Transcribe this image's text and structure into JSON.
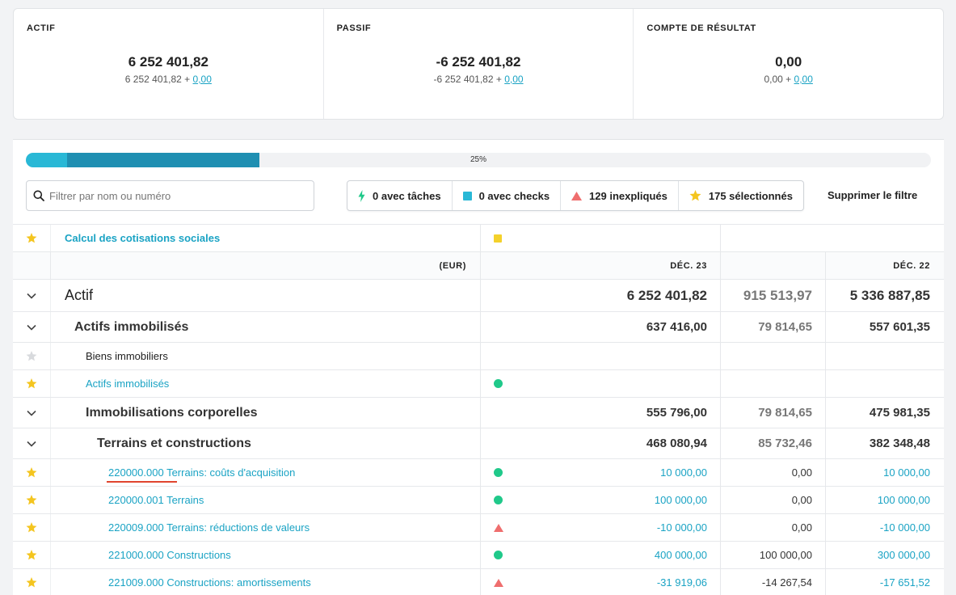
{
  "summary": {
    "actif": {
      "title": "ACTIF",
      "value": "6 252 401,82",
      "sub_base": "6 252 401,82 + ",
      "sub_link": "0,00"
    },
    "passif": {
      "title": "PASSIF",
      "value": "-6 252 401,82",
      "sub_base": "-6 252 401,82 + ",
      "sub_link": "0,00"
    },
    "resultat": {
      "title": "COMPTE DE RÉSULTAT",
      "value": "0,00",
      "sub_base": "0,00 + ",
      "sub_link": "0,00"
    }
  },
  "progress": {
    "label": "25%",
    "fill_fraction": 0.25,
    "colors": [
      "#29b8d6",
      "#1f8fb2"
    ]
  },
  "search": {
    "placeholder": "Filtrer par nom ou numéro",
    "value": ""
  },
  "filters": [
    {
      "label": "0 avec tâches",
      "icon": "bolt-icon",
      "color": "#20c98a"
    },
    {
      "label": "0 avec checks",
      "icon": "square-icon",
      "color": "#29b8d6"
    },
    {
      "label": "129 inexpliqués",
      "icon": "triangle-icon",
      "color": "#ef6e6e"
    },
    {
      "label": "175 sélectionnés",
      "icon": "star-icon",
      "color": "#f4c51f"
    }
  ],
  "clear_filter": "Supprimer le filtre",
  "table": {
    "top_row": {
      "label": "Calcul des cotisations sociales"
    },
    "header": {
      "currency": "(EUR)",
      "col1": "DÉC. 23",
      "col2": "",
      "col3": "DÉC. 22"
    },
    "rows": [
      {
        "level": "lvl0",
        "label": "Actif",
        "v1": "6 252 401,82",
        "v2": "915 513,97",
        "v3": "5 336 887,85"
      },
      {
        "level": "lvl1",
        "label": "Actifs immobilisés",
        "v1": "637 416,00",
        "v2": "79 814,65",
        "v3": "557 601,35"
      },
      {
        "level": "plain",
        "label": "Biens immobiliers"
      },
      {
        "level": "link2",
        "label": "Actifs immobilisés",
        "mark": "dot"
      },
      {
        "level": "lvl2b",
        "label": "Immobilisations corporelles",
        "v1": "555 796,00",
        "v2": "79 814,65",
        "v3": "475 981,35"
      },
      {
        "level": "lvl3b",
        "label": "Terrains et constructions",
        "v1": "468 080,94",
        "v2": "85 732,46",
        "v3": "382 348,48"
      },
      {
        "level": "acct",
        "number": "220000.000",
        "label": "Terrains: coûts d'acquisition",
        "mark": "dot",
        "v1": "10 000,00",
        "v2": "0,00",
        "v3": "10 000,00"
      },
      {
        "level": "acct",
        "number": "220000.001",
        "label": "Terrains",
        "mark": "dot",
        "v1": "100 000,00",
        "v2": "0,00",
        "v3": "100 000,00"
      },
      {
        "level": "acct",
        "number": "220009.000",
        "label": "Terrains: réductions de valeurs",
        "mark": "tri",
        "v1": "-10 000,00",
        "v2": "0,00",
        "v3": "-10 000,00"
      },
      {
        "level": "acct",
        "number": "221000.000",
        "label": "Constructions",
        "mark": "dot",
        "v1": "400 000,00",
        "v2": "100 000,00",
        "v3": "300 000,00"
      },
      {
        "level": "acct",
        "number": "221009.000",
        "label": "Constructions: amortissements",
        "mark": "tri",
        "v1": "-31 919,06",
        "v2": "-14 267,54",
        "v3": "-17 651,52"
      }
    ]
  }
}
